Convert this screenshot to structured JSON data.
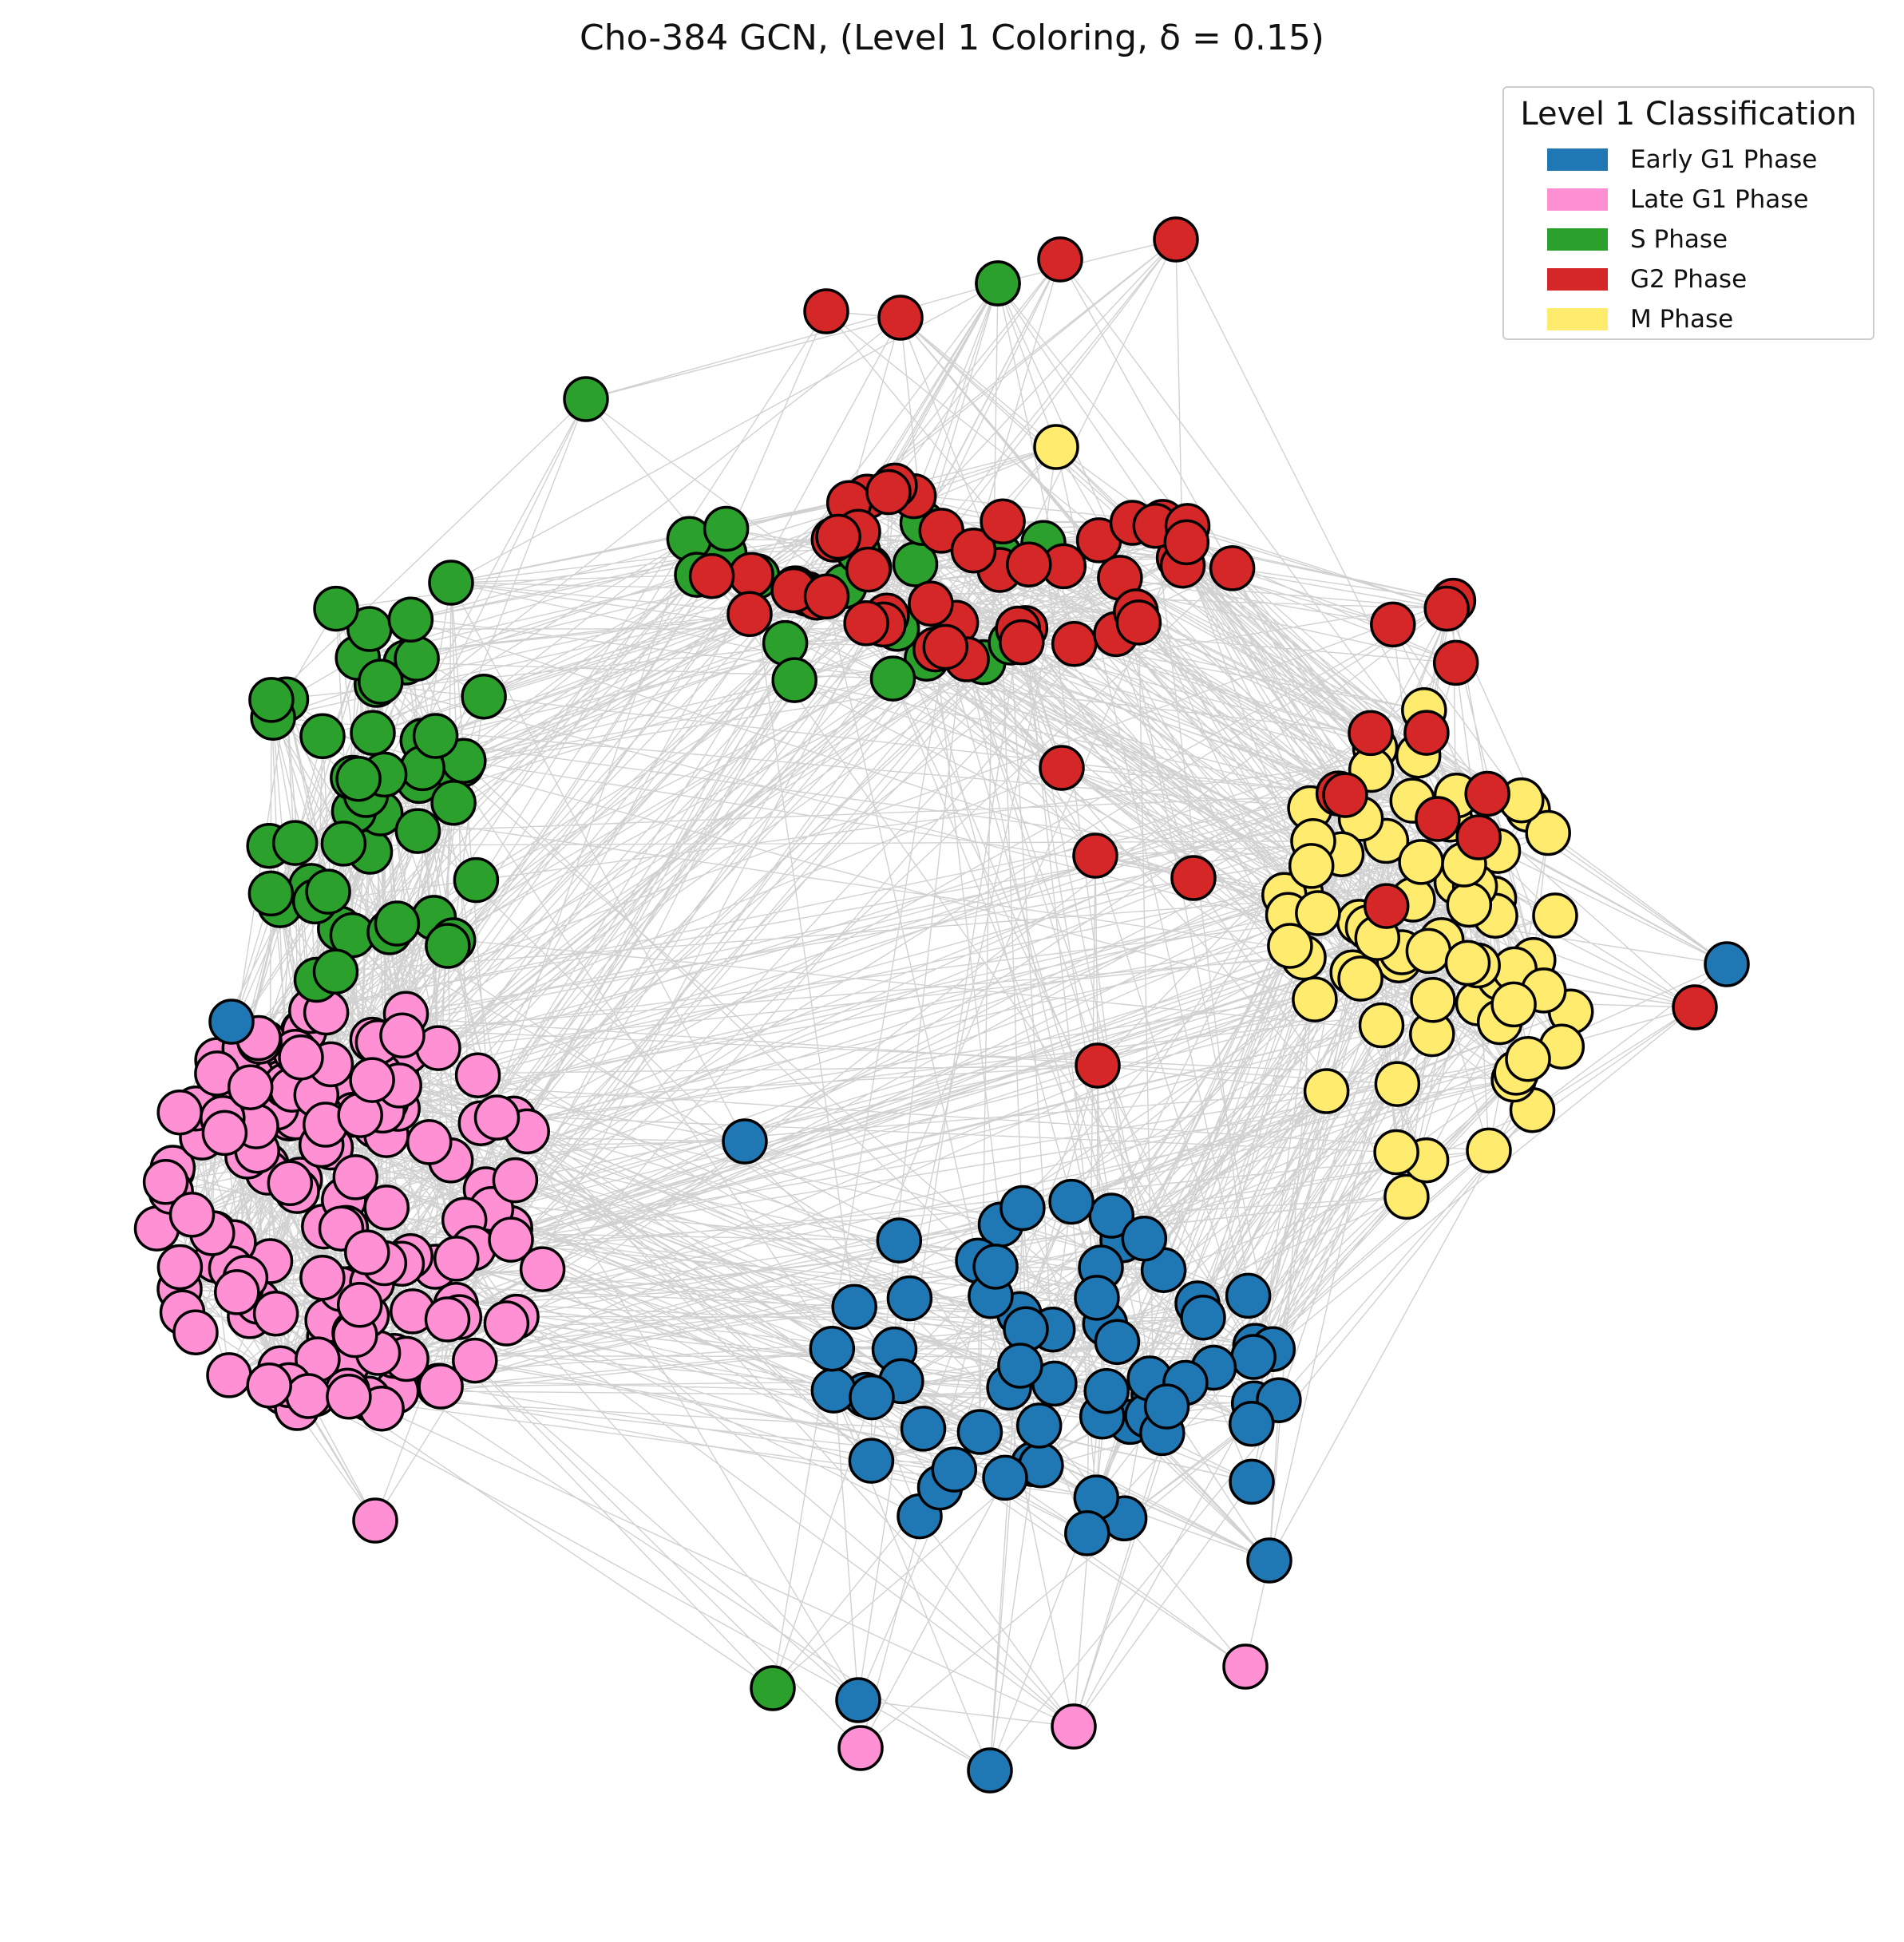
{
  "title": "Cho-384 GCN, (Level 1 Coloring, δ = 0.15)",
  "legend": {
    "title": "Level 1 Classification",
    "items": [
      {
        "label": "Early G1 Phase",
        "color": "#1f77b4"
      },
      {
        "label": "Late G1 Phase",
        "color": "#ff90d4"
      },
      {
        "label": "S Phase",
        "color": "#2ca02c"
      },
      {
        "label": "G2 Phase",
        "color": "#d62728"
      },
      {
        "label": "M Phase",
        "color": "#ffec6e"
      }
    ]
  },
  "colors": {
    "node_edge": "#000000",
    "edge": "#000000",
    "background": "#ffffff"
  }
}
